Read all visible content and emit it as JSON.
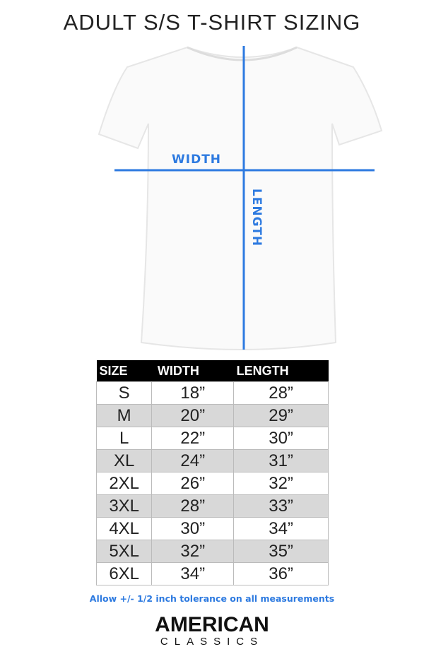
{
  "title": "ADULT S/S T-SHIRT SIZING",
  "diagram": {
    "width_label": "WIDTH",
    "length_label": "LENGTH",
    "line_color": "#2d7ae0"
  },
  "table": {
    "headers": [
      "SIZE",
      "WIDTH",
      "LENGTH"
    ],
    "rows": [
      [
        "S",
        "18”",
        "28”"
      ],
      [
        "M",
        "20”",
        "29”"
      ],
      [
        "L",
        "22”",
        "30”"
      ],
      [
        "XL",
        "24”",
        "31”"
      ],
      [
        "2XL",
        "26”",
        "32”"
      ],
      [
        "3XL",
        "28”",
        "33”"
      ],
      [
        "4XL",
        "30”",
        "34”"
      ],
      [
        "5XL",
        "32”",
        "35”"
      ],
      [
        "6XL",
        "34”",
        "36”"
      ]
    ]
  },
  "note": "Allow +/- 1/2 inch tolerance on all measurements",
  "logo": {
    "line1": "AMERICAN",
    "line2": "CLASSICS"
  }
}
